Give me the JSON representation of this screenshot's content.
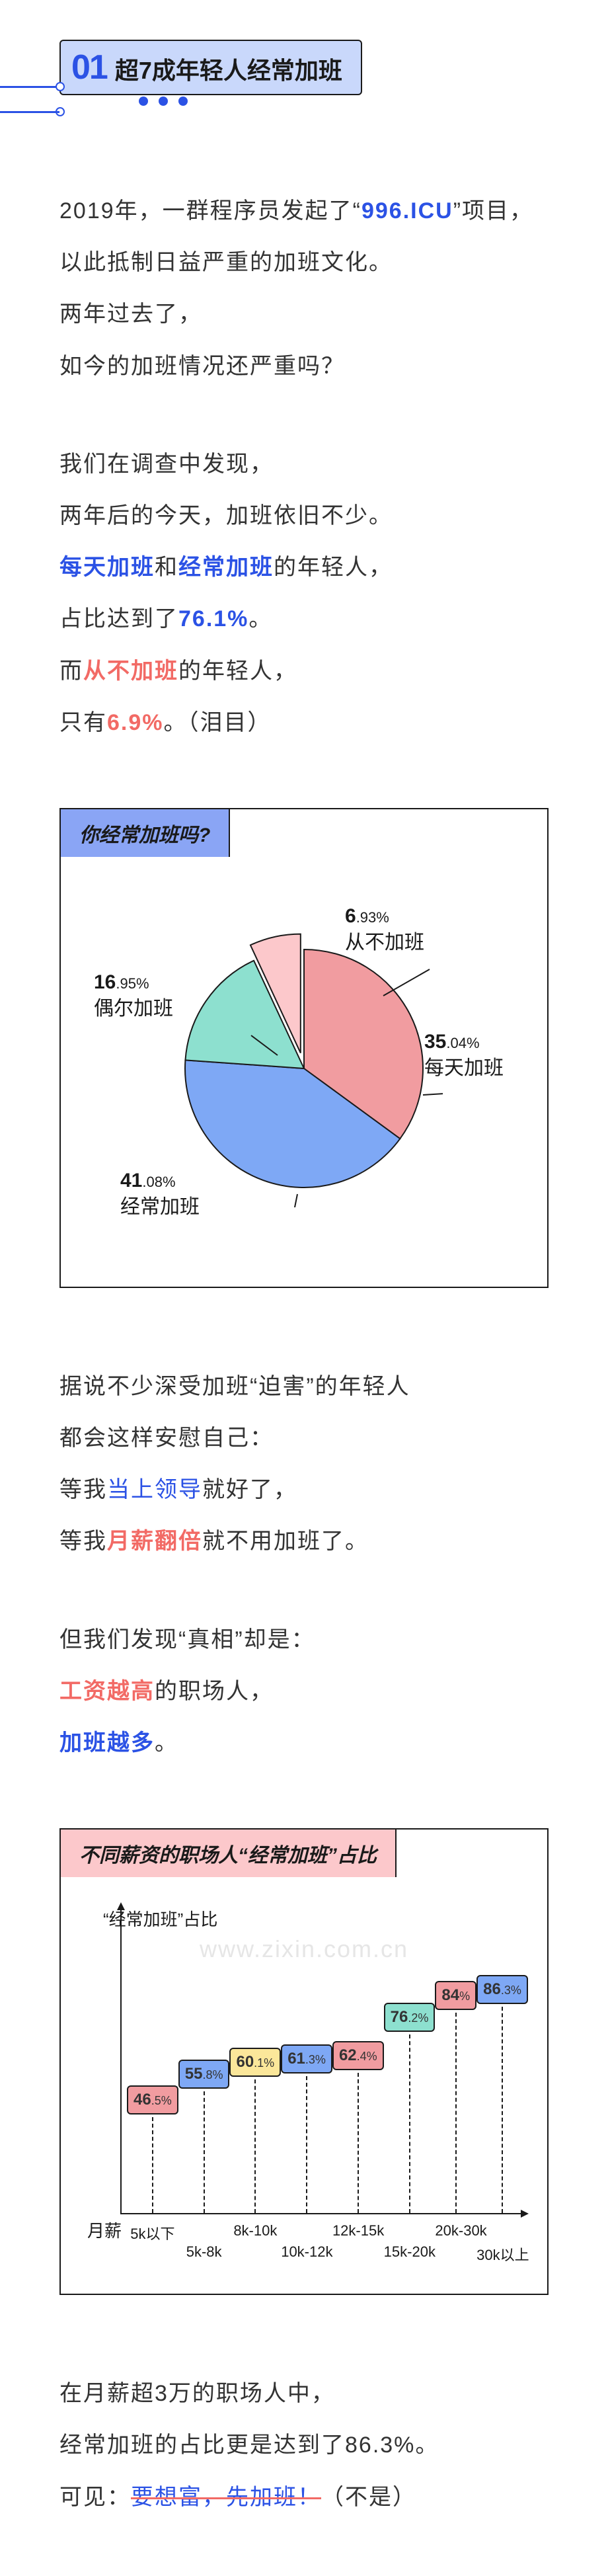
{
  "section": {
    "number": "01",
    "title": "超7成年轻人经常加班",
    "accent": "#2b52e5",
    "badge_bg": "#c9d8fb"
  },
  "para1": {
    "line1_a": "2019年，一群程序员发起了“",
    "line1_b": "996.ICU",
    "line1_c": "”项目，",
    "line2": "以此抵制日益严重的加班文化。",
    "line3": "两年过去了，",
    "line4": "如今的加班情况还严重吗？"
  },
  "para2": {
    "line1": "我们在调查中发现，",
    "line2": "两年后的今天，加班依旧不少。",
    "line3_a": "每天加班",
    "line3_b": "和",
    "line3_c": "经常加班",
    "line3_d": "的年轻人，",
    "line4_a": "占比达到了",
    "line4_b": "76.1%",
    "line4_c": "。",
    "line5_a": "而",
    "line5_b": "从不加班",
    "line5_c": "的年轻人，",
    "line6_a": "只有",
    "line6_b": "6.9%",
    "line6_c": "。（泪目）"
  },
  "pie_chart": {
    "title": "你经常加班吗?",
    "title_bg": "#8aa5f5",
    "background": "#ffffff",
    "border": "#1a1a1a",
    "slices": [
      {
        "label": "每天加班",
        "value": 35.04,
        "pct_text": "35",
        "pct_small": ".04%",
        "color": "#f19ca0"
      },
      {
        "label": "经常加班",
        "value": 41.08,
        "pct_text": "41",
        "pct_small": ".08%",
        "color": "#7ea8f5"
      },
      {
        "label": "偶尔加班",
        "value": 16.95,
        "pct_text": "16",
        "pct_small": ".95%",
        "color": "#8de0cf"
      },
      {
        "label": "从不加班",
        "value": 6.93,
        "pct_text": "6",
        "pct_small": ".93%",
        "color": "#fcc8cb"
      }
    ],
    "radius": 180,
    "pull_index": 3,
    "pull_dist": 24,
    "label_fontsize": 30
  },
  "para3": {
    "line1": "据说不少深受加班“迫害”的年轻人",
    "line2": "都会这样安慰自己：",
    "line3_a": "等我",
    "line3_b": "当上领导",
    "line3_c": "就好了，",
    "line4_a": "等我",
    "line4_b": "月薪翻倍",
    "line4_c": "就不用加班了。"
  },
  "para4": {
    "line1": "但我们发现“真相”却是：",
    "line2_a": "工资越高",
    "line2_b": "的职场人，",
    "line3_a": "加班越多",
    "line3_b": "。"
  },
  "bar_chart": {
    "title": "不同薪资的职场人“经常加班”占比",
    "title_bg": "#fcc8cb",
    "background": "#ffffff",
    "border": "#1a1a1a",
    "y_label": "“经常加班”占比",
    "x_label": "月薪",
    "y_max": 100,
    "label_fontsize": 24,
    "tick_fontsize": 22,
    "bars": [
      {
        "category": "5k以下",
        "value": 46.5,
        "text": "46",
        "small": ".5%",
        "color": "#f19ca0"
      },
      {
        "category": "5k-8k",
        "value": 55.8,
        "text": "55",
        "small": ".8%",
        "color": "#7ea8f5"
      },
      {
        "category": "8k-10k",
        "value": 60.1,
        "text": "60",
        "small": ".1%",
        "color": "#fbe79a"
      },
      {
        "category": "10k-12k",
        "value": 61.3,
        "text": "61",
        "small": ".3%",
        "color": "#7ea8f5"
      },
      {
        "category": "12k-15k",
        "value": 62.4,
        "text": "62",
        "small": ".4%",
        "color": "#f19ca0"
      },
      {
        "category": "15k-20k",
        "value": 76.2,
        "text": "76",
        "small": ".2%",
        "color": "#8de0cf"
      },
      {
        "category": "20k-30k",
        "value": 84.0,
        "text": "84",
        "small": "%",
        "color": "#f19ca0"
      },
      {
        "category": "30k以上",
        "value": 86.3,
        "text": "86",
        "small": ".3%",
        "color": "#7ea8f5"
      }
    ],
    "watermark": "www.zixin.com.cn"
  },
  "para5": {
    "line1": "在月薪超3万的职场人中，",
    "line2": "经常加班的占比更是达到了86.3%。",
    "line3_a": "可见：",
    "line3_b": "要想富，先加班！",
    "line3_c": "（不是）"
  }
}
